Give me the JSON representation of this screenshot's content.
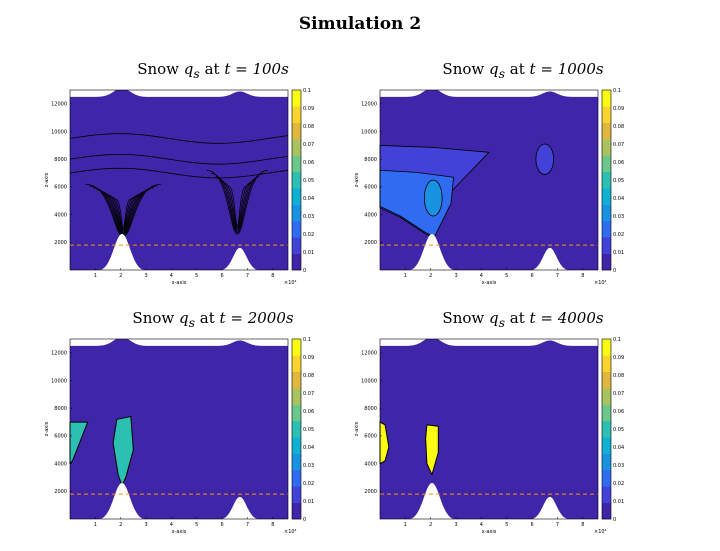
{
  "figure": {
    "title": "Simulation 2"
  },
  "chart_data": [
    {
      "type": "heatmap",
      "title": "Snow q_s at t = 100s",
      "title_parts": {
        "prefix": "Snow ",
        "var": "q",
        "sub": "s",
        "mid": " at ",
        "tvar": "t",
        "eq": " = ",
        "time": "100s"
      },
      "xlabel": "x-axis",
      "ylabel": "z-axis",
      "x_multiplier": "×10⁴",
      "xlim": [
        0,
        8.6
      ],
      "ylim": [
        0,
        13000
      ],
      "xticks": [
        1,
        2,
        3,
        4,
        5,
        6,
        7,
        8
      ],
      "yticks": [
        2000,
        4000,
        6000,
        8000,
        10000,
        12000
      ],
      "colorbar": {
        "min": 0,
        "max": 0.1,
        "ticks": [
          "0",
          "0.01",
          "0.02",
          "0.03",
          "0.04",
          "0.05",
          "0.06",
          "0.07",
          "0.08",
          "0.09",
          "0.1"
        ]
      },
      "reference_line_z": 1800,
      "filled_regions": [],
      "contour_lines": [
        {
          "kind": "band",
          "z": 9500
        },
        {
          "kind": "band",
          "z": 8000
        },
        {
          "kind": "band",
          "z": 7000
        },
        {
          "kind": "plume",
          "x": 2.1,
          "top": 6200,
          "bottom": 2400,
          "halfwidth": 1.5,
          "levels": 9
        },
        {
          "kind": "plume",
          "x": 6.6,
          "top": 7200,
          "bottom": 2600,
          "halfwidth": 1.2,
          "levels": 6
        }
      ]
    },
    {
      "type": "heatmap",
      "title": "Snow q_s at t = 1000s",
      "title_parts": {
        "prefix": "Snow ",
        "var": "q",
        "sub": "s",
        "mid": " at ",
        "tvar": "t",
        "eq": " = ",
        "time": "1000s"
      },
      "xlabel": "x-axis",
      "ylabel": "z-axis",
      "x_multiplier": "×10⁴",
      "xlim": [
        0,
        8.6
      ],
      "ylim": [
        0,
        13000
      ],
      "xticks": [
        1,
        2,
        3,
        4,
        5,
        6,
        7,
        8
      ],
      "yticks": [
        2000,
        4000,
        6000,
        8000,
        10000,
        12000
      ],
      "colorbar": {
        "min": 0,
        "max": 0.1,
        "ticks": [
          "0",
          "0.01",
          "0.02",
          "0.03",
          "0.04",
          "0.05",
          "0.06",
          "0.07",
          "0.08",
          "0.09",
          "0.1"
        ]
      },
      "reference_line_z": 1800,
      "filled_regions": [
        {
          "shape": "wedge",
          "value": 0.01,
          "x0": 0,
          "x1": 4.3,
          "z_top": 9000,
          "x_base": 2.0,
          "z_base": 2300
        },
        {
          "shape": "wedge",
          "value": 0.02,
          "x0": 0,
          "x1": 2.9,
          "z_top": 7200,
          "x_base": 2.0,
          "z_base": 2400
        },
        {
          "shape": "ellipse",
          "value": 0.03,
          "x": 2.1,
          "z": 5200,
          "rx": 0.35,
          "rz": 1300
        },
        {
          "shape": "ellipse",
          "value": 0.01,
          "x": 6.5,
          "z": 8000,
          "rx": 0.35,
          "rz": 1100
        }
      ],
      "contour_lines": []
    },
    {
      "type": "heatmap",
      "title": "Snow q_s at t = 2000s",
      "title_parts": {
        "prefix": "Snow ",
        "var": "q",
        "sub": "s",
        "mid": " at ",
        "tvar": "t",
        "eq": " = ",
        "time": "2000s"
      },
      "xlabel": "x-axis",
      "ylabel": "z-axis",
      "x_multiplier": "×10⁴",
      "xlim": [
        0,
        8.6
      ],
      "ylim": [
        0,
        13000
      ],
      "xticks": [
        1,
        2,
        3,
        4,
        5,
        6,
        7,
        8
      ],
      "yticks": [
        2000,
        4000,
        6000,
        8000,
        10000,
        12000
      ],
      "colorbar": {
        "min": 0,
        "max": 0.1,
        "ticks": [
          "0",
          "0.01",
          "0.02",
          "0.03",
          "0.04",
          "0.05",
          "0.06",
          "0.07",
          "0.08",
          "0.09",
          "0.1"
        ]
      },
      "reference_line_z": 1800,
      "filled_regions": [
        {
          "shape": "blob",
          "value": 0.05,
          "points": [
            [
              0,
              7000
            ],
            [
              0.7,
              7000
            ],
            [
              0.4,
              5600
            ],
            [
              0.1,
              4200
            ],
            [
              0,
              4000
            ]
          ]
        },
        {
          "shape": "blob",
          "value": 0.05,
          "points": [
            [
              1.85,
              7200
            ],
            [
              2.4,
              7400
            ],
            [
              2.5,
              5000
            ],
            [
              2.2,
              3000
            ],
            [
              2.05,
              2400
            ],
            [
              1.9,
              3200
            ],
            [
              1.7,
              5500
            ]
          ]
        }
      ],
      "contour_lines": []
    },
    {
      "type": "heatmap",
      "title": "Snow q_s at t = 4000s",
      "title_parts": {
        "prefix": "Snow ",
        "var": "q",
        "sub": "s",
        "mid": " at ",
        "tvar": "t",
        "eq": " = ",
        "time": "4000s"
      },
      "xlabel": "x-axis",
      "ylabel": "z-axis",
      "x_multiplier": "×10⁴",
      "xlim": [
        0,
        8.6
      ],
      "ylim": [
        0,
        13000
      ],
      "xticks": [
        1,
        2,
        3,
        4,
        5,
        6,
        7,
        8
      ],
      "yticks": [
        2000,
        4000,
        6000,
        8000,
        10000,
        12000
      ],
      "colorbar": {
        "min": 0,
        "max": 0.1,
        "ticks": [
          "0",
          "0.01",
          "0.02",
          "0.03",
          "0.04",
          "0.05",
          "0.06",
          "0.07",
          "0.08",
          "0.09",
          "0.1"
        ]
      },
      "reference_line_z": 1800,
      "filled_regions": [
        {
          "shape": "blob",
          "value": 0.1,
          "points": [
            [
              0,
              7000
            ],
            [
              0.2,
              6800
            ],
            [
              0.35,
              5200
            ],
            [
              0.2,
              4200
            ],
            [
              0,
              4000
            ]
          ]
        },
        {
          "shape": "blob",
          "value": 0.1,
          "points": [
            [
              1.85,
              6800
            ],
            [
              2.3,
              6700
            ],
            [
              2.3,
              4800
            ],
            [
              2.05,
              3200
            ],
            [
              1.85,
              4000
            ],
            [
              1.8,
              5800
            ]
          ]
        }
      ],
      "contour_lines": []
    }
  ],
  "colormap": [
    "#3f26a8",
    "#4342d8",
    "#2f6cf2",
    "#1a92e2",
    "#0fb0d2",
    "#2bc0b2",
    "#6cc88a",
    "#a9c45f",
    "#e0b73e",
    "#fad42e",
    "#f9fb14"
  ]
}
